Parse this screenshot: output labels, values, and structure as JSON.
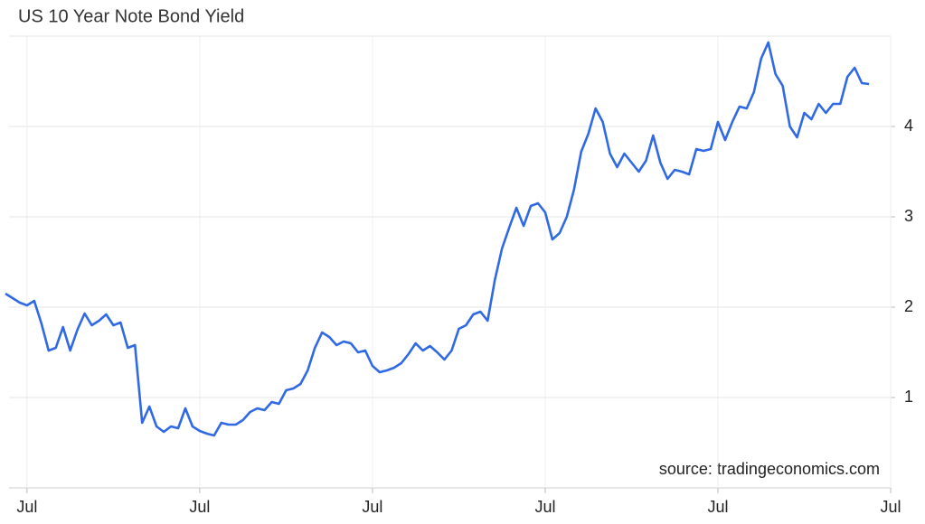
{
  "chart_data": {
    "type": "line",
    "title": "US 10 Year Note Bond Yield",
    "source": "source: tradingeconomics.com",
    "categories": [
      null,
      null,
      null,
      "Jul",
      null,
      null,
      null,
      null,
      null,
      null,
      null,
      null,
      null,
      null,
      null,
      null,
      null,
      null,
      null,
      null,
      null,
      null,
      null,
      null,
      null,
      null,
      null,
      "Jul",
      null,
      null,
      null,
      null,
      null,
      null,
      null,
      null,
      null,
      null,
      null,
      null,
      null,
      null,
      null,
      null,
      null,
      null,
      null,
      null,
      null,
      null,
      null,
      "Jul",
      null,
      null,
      null,
      null,
      null,
      null,
      null,
      null,
      null,
      null,
      null,
      null,
      null,
      null,
      null,
      null,
      null,
      null,
      null,
      null,
      null,
      null,
      null,
      "Jul",
      null,
      null,
      null,
      null,
      null,
      null,
      null,
      null,
      null,
      null,
      null,
      null,
      null,
      null,
      null,
      null,
      null,
      null,
      null,
      null,
      null,
      null,
      null,
      "Jul",
      null,
      null,
      null,
      null,
      null,
      null,
      null,
      null,
      null,
      null,
      null,
      null,
      null,
      null,
      null,
      null,
      null,
      null,
      null,
      null,
      null,
      null,
      null,
      "Jul"
    ],
    "values": [
      2.15,
      2.1,
      2.05,
      2.02,
      2.07,
      1.82,
      1.52,
      1.55,
      1.78,
      1.52,
      1.75,
      1.93,
      1.8,
      1.85,
      1.92,
      1.8,
      1.83,
      1.55,
      1.58,
      0.72,
      0.9,
      0.68,
      0.62,
      0.68,
      0.66,
      0.88,
      0.68,
      0.63,
      0.6,
      0.58,
      0.72,
      0.7,
      0.7,
      0.75,
      0.84,
      0.88,
      0.86,
      0.95,
      0.93,
      1.08,
      1.1,
      1.15,
      1.3,
      1.55,
      1.72,
      1.67,
      1.58,
      1.62,
      1.6,
      1.5,
      1.52,
      1.35,
      1.28,
      1.3,
      1.33,
      1.38,
      1.48,
      1.6,
      1.52,
      1.57,
      1.5,
      1.42,
      1.52,
      1.76,
      1.8,
      1.92,
      1.95,
      1.85,
      2.3,
      2.65,
      2.88,
      3.1,
      2.9,
      3.12,
      3.15,
      3.05,
      2.75,
      2.82,
      3.0,
      3.3,
      3.72,
      3.92,
      4.2,
      4.05,
      3.7,
      3.55,
      3.7,
      3.6,
      3.5,
      3.62,
      3.9,
      3.6,
      3.42,
      3.52,
      3.5,
      3.47,
      3.75,
      3.73,
      3.75,
      4.05,
      3.85,
      4.05,
      4.22,
      4.2,
      4.38,
      4.75,
      4.93,
      4.58,
      4.45,
      4.0,
      3.88,
      4.15,
      4.08,
      4.25,
      4.15,
      4.25,
      4.25,
      4.55,
      4.65,
      4.48,
      4.47,
      null,
      null,
      null
    ],
    "color": "#2f69e3",
    "ylim": [
      0,
      5
    ],
    "yticks": [
      1,
      2,
      3,
      4
    ],
    "grid": true
  }
}
